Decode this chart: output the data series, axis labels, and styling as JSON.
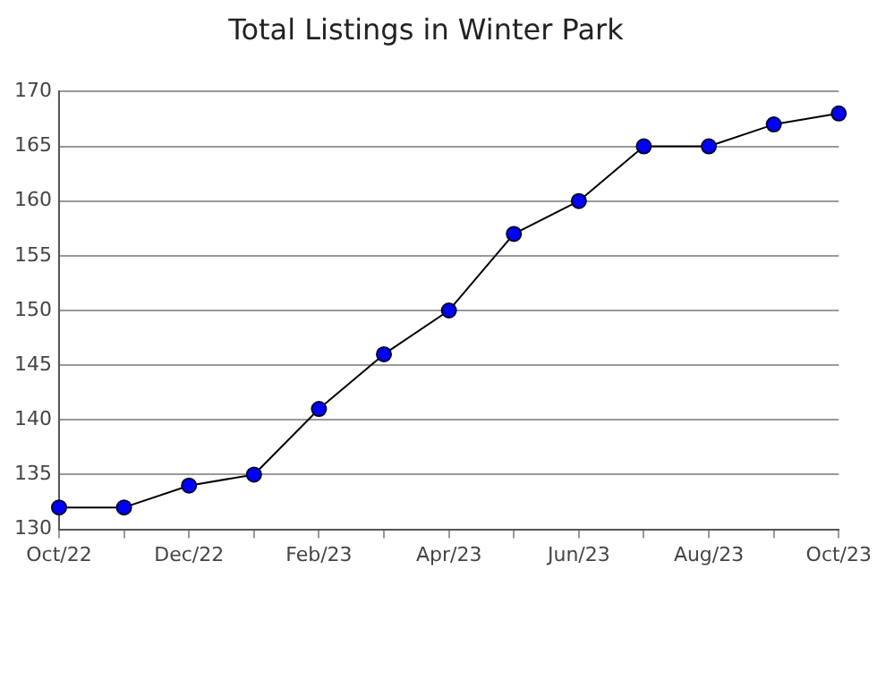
{
  "chart_data": {
    "type": "line",
    "title": "Total Listings in Winter Park",
    "categories": [
      "Oct/22",
      null,
      "Dec/22",
      null,
      "Feb/23",
      null,
      "Apr/23",
      null,
      "Jun/23",
      null,
      "Aug/23",
      null,
      "Oct/23"
    ],
    "series": [
      {
        "color": "#0000ff",
        "values": [
          132,
          132,
          134,
          135,
          141,
          146,
          150,
          157,
          160,
          165,
          165,
          167,
          168
        ]
      }
    ],
    "ylim": [
      130,
      170
    ],
    "yticks": [
      130,
      135,
      140,
      145,
      150,
      155,
      160,
      165,
      170
    ],
    "grid": "y",
    "legend": false,
    "marker": "circle",
    "line_style": "solid"
  }
}
